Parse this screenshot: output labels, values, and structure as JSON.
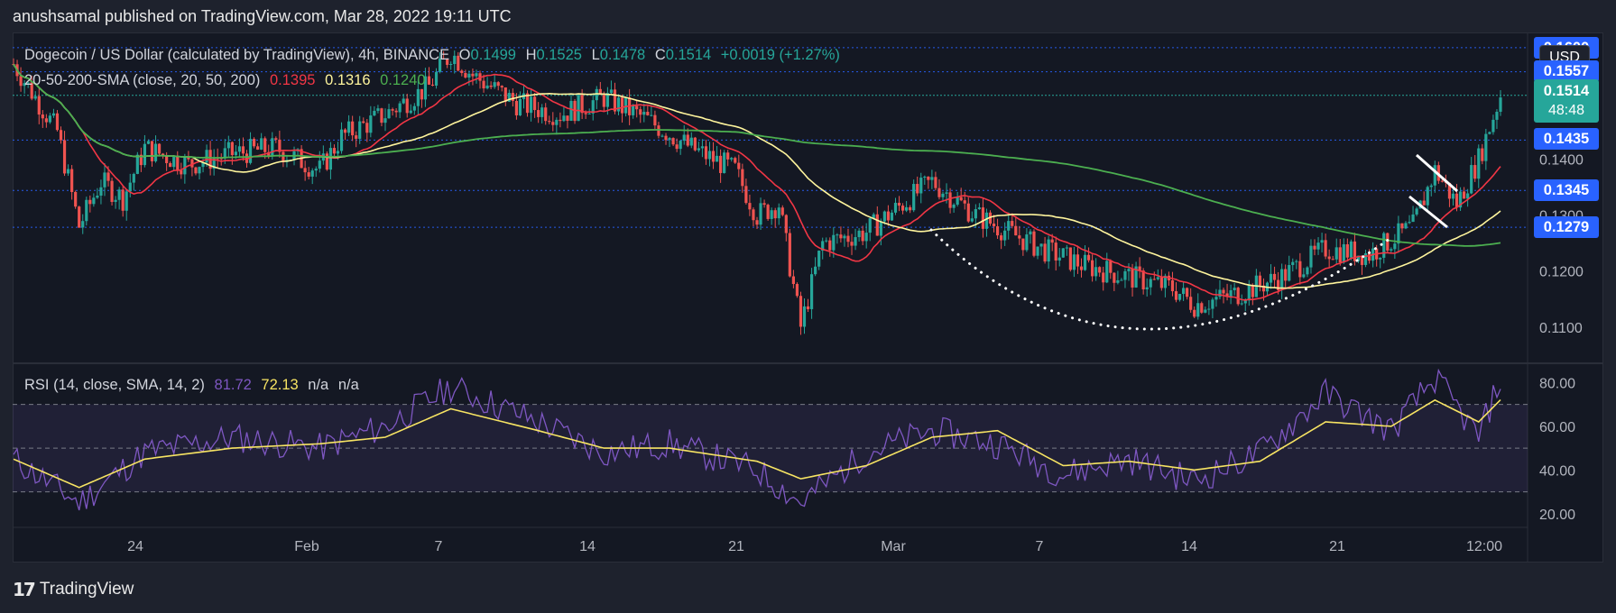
{
  "header": {
    "published_line": "anushsamal published on TradingView.com, Mar 28, 2022 19:11 UTC"
  },
  "legend": {
    "symbol_title": "Dogecoin / US Dollar (calculated by TradingView), 4h, BINANCE",
    "ohlc": {
      "o_label": "O",
      "o_value": "0.1499",
      "h_label": "H",
      "h_value": "0.1525",
      "l_label": "L",
      "l_value": "0.1478",
      "c_label": "C",
      "c_value": "0.1514",
      "change": "+0.0019 (+1.27%)"
    },
    "sma_label": "20-50-200-SMA (close, 20, 50, 200)",
    "sma_values": [
      "0.1395",
      "0.1316",
      "0.1240"
    ],
    "rsi_label": "RSI (14, close, SMA, 14, 2)",
    "rsi_values": [
      "81.72",
      "72.13",
      "n/a",
      "n/a"
    ]
  },
  "price_scale": {
    "currency": "USD",
    "ticks": [
      "0.1600",
      "0.1400",
      "0.1300",
      "0.1200",
      "0.1100"
    ],
    "tags": [
      "0.1600",
      "0.1557",
      "0.1435",
      "0.1345",
      "0.1279"
    ],
    "current_price": "0.1514",
    "countdown": "48:48"
  },
  "rsi_scale": {
    "ticks": [
      "80.00",
      "60.00",
      "40.00",
      "20.00"
    ]
  },
  "time_axis": {
    "labels": [
      "24",
      "Feb",
      "7",
      "14",
      "21",
      "Mar",
      "7",
      "14",
      "21",
      "12:00"
    ]
  },
  "footer": {
    "brand": "TradingView"
  },
  "colors": {
    "background": "#141823",
    "up_candle": "#26a69a",
    "down_candle": "#ef5350",
    "sma20": "#f23645",
    "sma50": "#fff59d",
    "sma200": "#4caf50",
    "rsi_line": "#7e57c2",
    "rsi_sma": "#f7e463",
    "price_tag": "#2962ff",
    "current_price_tag": "#26a69a"
  },
  "chart_data": [
    {
      "type": "candlestick",
      "title": "Dogecoin / US Dollar (calculated by TradingView), 4h, BINANCE",
      "x_range": [
        "2022-01-19",
        "2022-03-28"
      ],
      "ylim": [
        0.104,
        0.162
      ],
      "close_path": {
        "x": [
          "2022-01-19",
          "2022-01-21",
          "2022-01-22",
          "2022-01-23",
          "2022-01-24",
          "2022-01-25",
          "2022-01-27",
          "2022-01-29",
          "2022-01-31",
          "2022-02-02",
          "2022-02-03",
          "2022-02-05",
          "2022-02-07",
          "2022-02-08",
          "2022-02-09",
          "2022-02-11",
          "2022-02-13",
          "2022-02-15",
          "2022-02-17",
          "2022-02-19",
          "2022-02-21",
          "2022-02-22",
          "2022-02-23",
          "2022-02-24",
          "2022-02-25",
          "2022-02-27",
          "2022-02-28",
          "2022-03-02",
          "2022-03-04",
          "2022-03-06",
          "2022-03-07",
          "2022-03-09",
          "2022-03-11",
          "2022-03-13",
          "2022-03-14",
          "2022-03-16",
          "2022-03-18",
          "2022-03-20",
          "2022-03-22",
          "2022-03-24",
          "2022-03-25",
          "2022-03-26",
          "2022-03-27",
          "2022-03-28"
        ],
        "y": [
          0.157,
          0.145,
          0.128,
          0.136,
          0.133,
          0.142,
          0.139,
          0.141,
          0.142,
          0.138,
          0.144,
          0.148,
          0.153,
          0.159,
          0.155,
          0.15,
          0.148,
          0.151,
          0.147,
          0.142,
          0.138,
          0.13,
          0.132,
          0.11,
          0.125,
          0.127,
          0.13,
          0.136,
          0.13,
          0.126,
          0.124,
          0.121,
          0.119,
          0.117,
          0.114,
          0.116,
          0.119,
          0.124,
          0.123,
          0.128,
          0.138,
          0.132,
          0.14,
          0.1514
        ]
      },
      "sma20": {
        "label": "20-50-200-SMA (close, 20, 50, 200)",
        "last": 0.1395
      },
      "sma50": {
        "last": 0.1316
      },
      "sma200": {
        "last": 0.124
      },
      "annotations": [
        "rounded-bottom dotted arc",
        "bull-flag parallel lines"
      ]
    },
    {
      "type": "line",
      "title": "RSI (14, close, SMA, 14, 2)",
      "ylim": [
        15,
        88
      ],
      "bands": [
        30,
        50,
        70
      ],
      "x": [
        "2022-01-19",
        "2022-01-22",
        "2022-01-25",
        "2022-01-29",
        "2022-02-02",
        "2022-02-05",
        "2022-02-08",
        "2022-02-12",
        "2022-02-15",
        "2022-02-18",
        "2022-02-22",
        "2022-02-24",
        "2022-02-27",
        "2022-03-02",
        "2022-03-05",
        "2022-03-08",
        "2022-03-11",
        "2022-03-14",
        "2022-03-17",
        "2022-03-20",
        "2022-03-23",
        "2022-03-25",
        "2022-03-27",
        "2022-03-28"
      ],
      "series": [
        {
          "name": "RSI",
          "values": [
            45,
            25,
            48,
            55,
            50,
            60,
            78,
            62,
            48,
            52,
            40,
            25,
            48,
            58,
            52,
            38,
            45,
            35,
            48,
            75,
            58,
            82,
            55,
            81.72
          ]
        },
        {
          "name": "RSI SMA",
          "values": [
            45,
            32,
            45,
            50,
            52,
            55,
            68,
            58,
            50,
            50,
            44,
            36,
            42,
            55,
            58,
            42,
            44,
            40,
            44,
            62,
            60,
            72,
            62,
            72.13
          ]
        }
      ]
    }
  ]
}
